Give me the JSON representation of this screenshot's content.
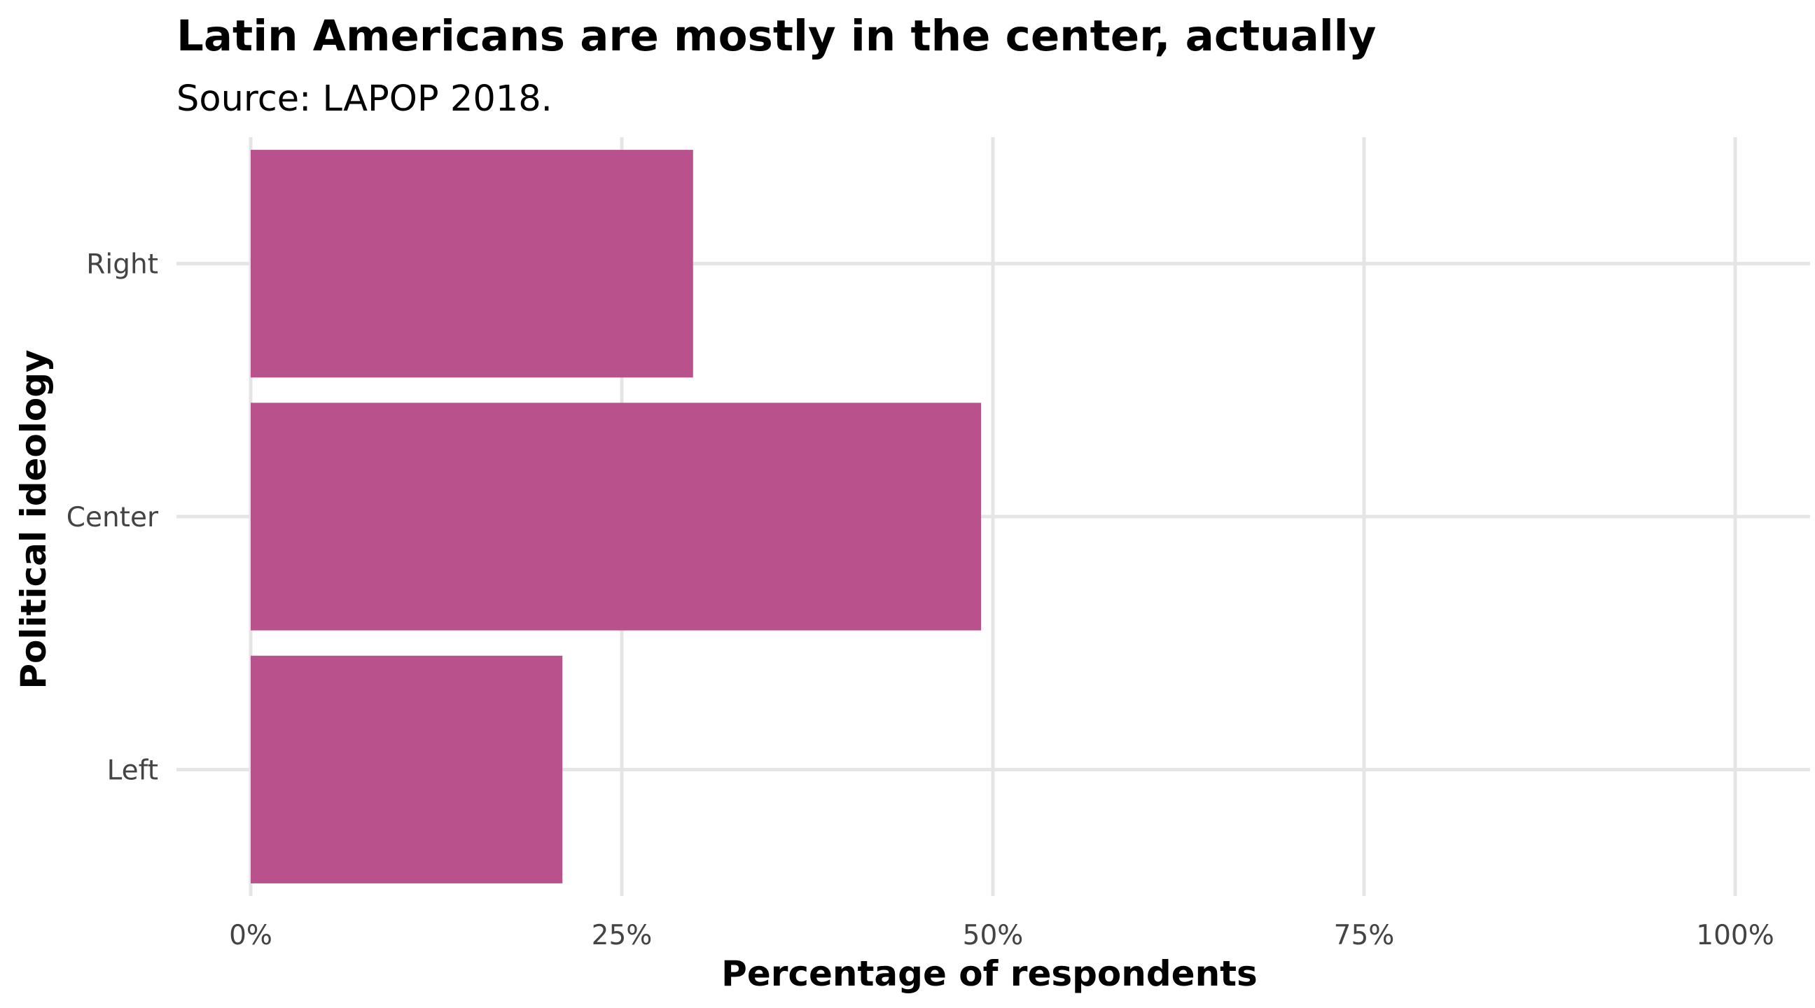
{
  "chart_data": {
    "type": "bar",
    "orientation": "horizontal",
    "title": "Latin Americans are mostly in the center, actually",
    "subtitle": "Source: LAPOP 2018.",
    "xlabel": "Percentage of respondents",
    "ylabel": "Political ideology",
    "categories": [
      "Left",
      "Center",
      "Right"
    ],
    "values": [
      0.21,
      0.492,
      0.298
    ],
    "xlim": [
      0,
      1
    ],
    "x_ticks": [
      0,
      0.25,
      0.5,
      0.75,
      1.0
    ],
    "x_tick_labels": [
      "0%",
      "25%",
      "50%",
      "75%",
      "100%"
    ],
    "grid": true,
    "legend": "none",
    "bar_color": "#b9518c",
    "grid_color": "#e5e5e5"
  }
}
